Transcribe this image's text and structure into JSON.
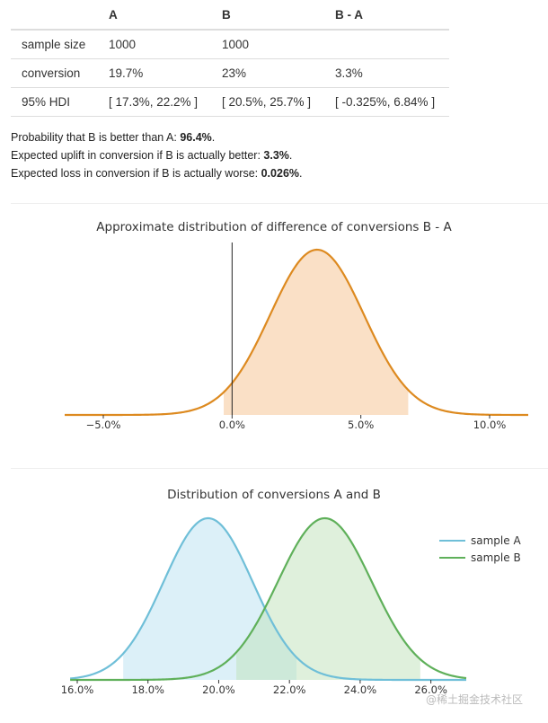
{
  "table": {
    "headers": [
      "",
      "A",
      "B",
      "B - A"
    ],
    "rows": [
      {
        "label": "sample size",
        "a": "1000",
        "b": "1000",
        "diff": ""
      },
      {
        "label": "conversion",
        "a": "19.7%",
        "b": "23%",
        "diff": "3.3%"
      },
      {
        "label": "95% HDI",
        "a": "[ 17.3%, 22.2% ]",
        "b": "[ 20.5%, 25.7% ]",
        "diff": "[ -0.325%, 6.84% ]"
      }
    ]
  },
  "summary": {
    "prob_prefix": "Probability that B is better than A: ",
    "prob_value": "96.4%",
    "uplift_prefix": "Expected uplift in conversion if B is actually better: ",
    "uplift_value": "3.3%",
    "loss_prefix": "Expected loss in conversion if B is actually worse: ",
    "loss_value": "0.026%",
    "suffix": "."
  },
  "chart_data": [
    {
      "type": "area",
      "title": "Approximate distribution of difference of conversions B - A",
      "xlabel": "",
      "ylabel": "",
      "xlim": [
        -0.065,
        0.115
      ],
      "x_ticks": [
        -0.05,
        0.0,
        0.05,
        0.1
      ],
      "x_tick_labels": [
        "−5.0%",
        "0.0%",
        "5.0%",
        "10.0%"
      ],
      "vertical_line_at": 0.0,
      "series": [
        {
          "distribution": "normal",
          "mean": 0.033,
          "sd": 0.0182,
          "hdi": [
            -0.00325,
            0.0684
          ],
          "color": "#dd8a20",
          "fill": "#fae0c6"
        }
      ],
      "grid": false
    },
    {
      "type": "area",
      "title": "Distribution of conversions A and B",
      "xlabel": "",
      "ylabel": "",
      "xlim": [
        0.16,
        0.27
      ],
      "x_ticks": [
        0.16,
        0.18,
        0.2,
        0.22,
        0.24,
        0.26
      ],
      "x_tick_labels": [
        "16.0%",
        "18.0%",
        "20.0%",
        "22.0%",
        "24.0%",
        "26.0%"
      ],
      "legend_position": "top-right",
      "series": [
        {
          "name": "sample A",
          "distribution": "normal",
          "mean": 0.197,
          "sd": 0.0126,
          "hdi": [
            0.173,
            0.222
          ],
          "color": "#6fbfd8",
          "fill": "#dcf0f8"
        },
        {
          "name": "sample B",
          "distribution": "normal",
          "mean": 0.23,
          "sd": 0.0133,
          "hdi": [
            0.205,
            0.257
          ],
          "color": "#5fb05a",
          "fill": "#dff0dc"
        }
      ],
      "overlap_fill": "#cde9d9",
      "grid": false
    }
  ],
  "watermark": "@稀土掘金技术社区"
}
